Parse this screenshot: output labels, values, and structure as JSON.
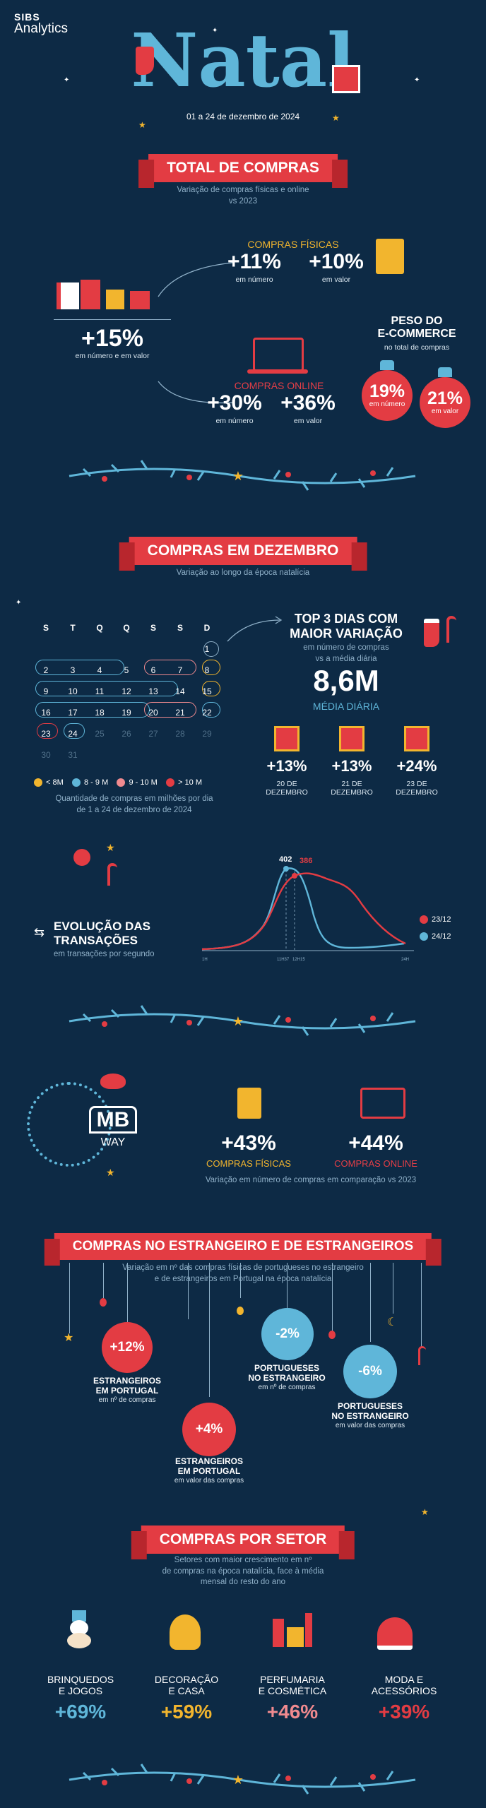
{
  "brand": {
    "line1": "SIBS",
    "line2": "Analytics"
  },
  "hero": {
    "title": "Natal",
    "dates": "01 a 24 de dezembro de 2024"
  },
  "total": {
    "title": "TOTAL DE COMPRAS",
    "subtitle1": "Variação de compras físicas e online",
    "subtitle2": "vs 2023",
    "main_value": "+15%",
    "main_label": "em número e em valor",
    "fisicas_title": "COMPRAS FÍSICAS",
    "fisicas_n": "+11%",
    "fisicas_n_label": "em número",
    "fisicas_v": "+10%",
    "fisicas_v_label": "em valor",
    "online_title": "COMPRAS ONLINE",
    "online_n": "+30%",
    "online_n_label": "em número",
    "online_v": "+36%",
    "online_v_label": "em valor",
    "peso_title1": "PESO DO",
    "peso_title2": "E-COMMERCE",
    "peso_sub": "no total de compras",
    "peso_n": "19%",
    "peso_n_label": "em número",
    "peso_v": "21%",
    "peso_v_label": "em valor"
  },
  "dezembro": {
    "title": "COMPRAS EM DEZEMBRO",
    "subtitle": "Variação ao longo da época natalícia",
    "weekdays": [
      "S",
      "T",
      "Q",
      "Q",
      "S",
      "S",
      "D"
    ],
    "days": [
      "1",
      "2",
      "3",
      "4",
      "5",
      "6",
      "7",
      "8",
      "9",
      "10",
      "11",
      "12",
      "13",
      "14",
      "15",
      "16",
      "17",
      "18",
      "19",
      "20",
      "21",
      "22",
      "23",
      "24",
      "25",
      "26",
      "27",
      "28",
      "29",
      "30",
      "31"
    ],
    "legend": [
      "< 8M",
      "8 - 9 M",
      "9 - 10 M",
      "> 10 M"
    ],
    "legend_colors": [
      "#f2b52e",
      "#5fb6d9",
      "#f08a8f",
      "#e33c43"
    ],
    "caption1": "Quantidade de compras em milhões por dia",
    "caption2": "de 1 a 24 de dezembro de 2024",
    "top3_title1": "TOP 3 DIAS COM",
    "top3_title2": "MAIOR VARIAÇÃO",
    "top3_sub1": "em número de compras",
    "top3_sub2": "vs a média diária",
    "media_value": "8,6M",
    "media_label": "MÉDIA DIÁRIA",
    "top": [
      {
        "value": "+13%",
        "line1": "20 DE",
        "line2": "DEZEMBRO"
      },
      {
        "value": "+13%",
        "line1": "21 DE",
        "line2": "DEZEMBRO"
      },
      {
        "value": "+24%",
        "line1": "23 DE",
        "line2": "DEZEMBRO"
      }
    ]
  },
  "evolucao": {
    "title1": "EVOLUÇÃO DAS",
    "title2": "TRANSAÇÕES",
    "sub": "em transações por segundo",
    "peak_blue": "402",
    "peak_red": "386",
    "x_labels": [
      "1H",
      "11H37",
      "12H15",
      "24H"
    ],
    "series": [
      {
        "name": "23/12",
        "color": "#e33c43"
      },
      {
        "name": "24/12",
        "color": "#5fb6d9"
      }
    ]
  },
  "mbway": {
    "logo_top": "MB",
    "logo_bottom": "WAY",
    "fisicas_value": "+43%",
    "fisicas_label": "COMPRAS FÍSICAS",
    "online_value": "+44%",
    "online_label": "COMPRAS ONLINE",
    "caption": "Variação em número de compras em comparação vs 2023"
  },
  "estrangeiro": {
    "title": "COMPRAS NO ESTRANGEIRO E DE ESTRANGEIROS",
    "sub1": "Variação em nº das compras físicas de portugueses no estrangeiro",
    "sub2": "e de estrangeiros em Portugal na época natalícia",
    "items": [
      {
        "value": "+12%",
        "l1": "ESTRANGEIROS",
        "l2": "EM PORTUGAL",
        "l3": "em nº de compras"
      },
      {
        "value": "+4%",
        "l1": "ESTRANGEIROS",
        "l2": "EM PORTUGAL",
        "l3": "em valor das compras"
      },
      {
        "value": "-2%",
        "l1": "PORTUGUESES",
        "l2": "NO ESTRANGEIRO",
        "l3": "em nº de compras"
      },
      {
        "value": "-6%",
        "l1": "PORTUGUESES",
        "l2": "NO ESTRANGEIRO",
        "l3": "em valor das compras"
      }
    ]
  },
  "setor": {
    "title": "COMPRAS POR SETOR",
    "sub1": "Setores com maior crescimento em nº",
    "sub2": "de compras na época natalícia, face à média",
    "sub3": "mensal do resto do ano",
    "items": [
      {
        "l1": "BRINQUEDOS",
        "l2": "E JOGOS",
        "value": "+69%",
        "color": "#5fb6d9"
      },
      {
        "l1": "DECORAÇÃO",
        "l2": "E CASA",
        "value": "+59%",
        "color": "#f2b52e"
      },
      {
        "l1": "PERFUMARIA",
        "l2": "E COSMÉTICA",
        "value": "+46%",
        "color": "#f08a8f"
      },
      {
        "l1": "MODA E",
        "l2": "ACESSÓRIOS",
        "value": "+39%",
        "color": "#e33c43"
      }
    ]
  }
}
